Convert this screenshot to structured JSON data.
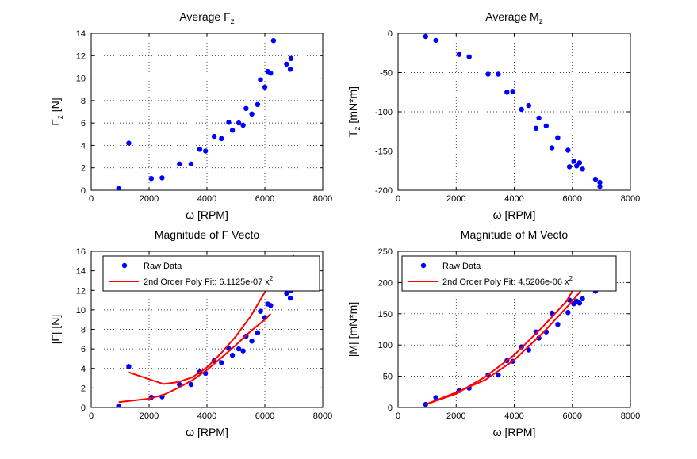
{
  "figure": {
    "background": "#ffffff"
  },
  "chart_data": [
    {
      "id": "fz",
      "type": "scatter",
      "title": {
        "main": "Average F",
        "sub": "z"
      },
      "xlabel": {
        "main": "ω [RPM]"
      },
      "ylabel": {
        "main": "F",
        "sub": "z",
        "tail": " [N]"
      },
      "xlim": [
        0,
        8000
      ],
      "ylim": [
        0,
        14
      ],
      "xticks": [
        0,
        2000,
        4000,
        6000,
        8000
      ],
      "yticks": [
        0,
        2,
        4,
        6,
        8,
        10,
        12,
        14
      ],
      "grid": true,
      "series": [
        {
          "color": "#0000ff",
          "marker": "dot",
          "points": [
            [
              950,
              0.15
            ],
            [
              1300,
              4.2
            ],
            [
              2080,
              1.05
            ],
            [
              2450,
              1.1
            ],
            [
              3050,
              2.35
            ],
            [
              3450,
              2.35
            ],
            [
              3750,
              3.65
            ],
            [
              3950,
              3.5
            ],
            [
              4250,
              4.8
            ],
            [
              4500,
              4.6
            ],
            [
              4750,
              6.05
            ],
            [
              4880,
              5.35
            ],
            [
              5100,
              6.0
            ],
            [
              5250,
              5.8
            ],
            [
              5350,
              7.3
            ],
            [
              5550,
              6.8
            ],
            [
              5750,
              7.65
            ],
            [
              5850,
              9.85
            ],
            [
              6000,
              9.2
            ],
            [
              6100,
              10.6
            ],
            [
              6200,
              10.45
            ],
            [
              6300,
              13.35
            ],
            [
              6750,
              11.25
            ],
            [
              6900,
              11.75
            ],
            [
              6880,
              10.8
            ]
          ]
        }
      ]
    },
    {
      "id": "mz",
      "type": "scatter",
      "title": {
        "main": "Average M",
        "sub": "z"
      },
      "xlabel": {
        "main": "ω [RPM]"
      },
      "ylabel": {
        "main": "T",
        "sub": "z",
        "tail": " [mN*m]"
      },
      "xlim": [
        0,
        8000
      ],
      "ylim": [
        -200,
        0
      ],
      "xticks": [
        0,
        2000,
        4000,
        6000,
        8000
      ],
      "yticks": [
        -200,
        -150,
        -100,
        -50,
        0
      ],
      "grid": true,
      "series": [
        {
          "color": "#0000ff",
          "marker": "dot",
          "points": [
            [
              950,
              -4
            ],
            [
              1300,
              -9
            ],
            [
              2100,
              -27
            ],
            [
              2450,
              -30
            ],
            [
              3100,
              -52
            ],
            [
              3450,
              -52
            ],
            [
              3750,
              -75
            ],
            [
              3950,
              -74
            ],
            [
              4250,
              -97
            ],
            [
              4500,
              -92
            ],
            [
              4750,
              -121
            ],
            [
              4850,
              -108
            ],
            [
              5100,
              -118
            ],
            [
              5300,
              -146
            ],
            [
              5500,
              -133
            ],
            [
              5850,
              -149
            ],
            [
              5900,
              -170
            ],
            [
              6050,
              -163
            ],
            [
              6150,
              -169
            ],
            [
              6250,
              -165
            ],
            [
              6350,
              -173
            ],
            [
              6800,
              -186
            ],
            [
              6950,
              -190
            ],
            [
              6950,
              -195
            ]
          ]
        }
      ]
    },
    {
      "id": "fmag",
      "type": "scatter",
      "title": {
        "main": "Magnitude of F Vecto"
      },
      "xlabel": {
        "main": "ω [RPM]"
      },
      "ylabel": {
        "main": "|F| [N]"
      },
      "xlim": [
        0,
        8000
      ],
      "ylim": [
        0,
        16
      ],
      "xticks": [
        0,
        2000,
        4000,
        6000,
        8000
      ],
      "yticks": [
        0,
        2,
        4,
        6,
        8,
        10,
        12,
        14,
        16
      ],
      "grid": true,
      "legend": {
        "position": "top",
        "entries": [
          {
            "label": "Raw Data",
            "kind": "dot",
            "color": "#0000ff"
          },
          {
            "label": "2nd Order Poly Fit: 6.1125e-07 x",
            "sup": "2",
            "kind": "line",
            "color": "#ff0000"
          }
        ]
      },
      "series": [
        {
          "color": "#0000ff",
          "marker": "dot",
          "points": [
            [
              950,
              0.15
            ],
            [
              1300,
              4.2
            ],
            [
              2080,
              1.05
            ],
            [
              2450,
              1.1
            ],
            [
              3050,
              2.35
            ],
            [
              3450,
              2.35
            ],
            [
              3750,
              3.65
            ],
            [
              3950,
              3.5
            ],
            [
              4250,
              4.8
            ],
            [
              4500,
              4.6
            ],
            [
              4750,
              6.05
            ],
            [
              4880,
              5.35
            ],
            [
              5100,
              6.0
            ],
            [
              5250,
              5.8
            ],
            [
              5350,
              7.3
            ],
            [
              5550,
              6.8
            ],
            [
              5750,
              7.65
            ],
            [
              5850,
              9.85
            ],
            [
              6000,
              9.2
            ],
            [
              6100,
              10.6
            ],
            [
              6200,
              10.45
            ],
            [
              6750,
              11.7
            ],
            [
              6900,
              12.0
            ],
            [
              6880,
              11.2
            ]
          ]
        },
        {
          "color": "#ff0000",
          "marker": "line",
          "points": [
            [
              950,
              0.55
            ],
            [
              2000,
              0.9
            ],
            [
              2500,
              1.3
            ],
            [
              3000,
              2.0
            ],
            [
              3500,
              2.8
            ],
            [
              4000,
              3.85
            ],
            [
              4500,
              5.1
            ],
            [
              5000,
              6.4
            ],
            [
              5500,
              7.8
            ],
            [
              6000,
              9.0
            ],
            [
              6200,
              9.6
            ]
          ]
        },
        {
          "color": "#ff0000",
          "marker": "line",
          "points": [
            [
              1300,
              3.6
            ],
            [
              2500,
              2.4
            ],
            [
              3000,
              2.6
            ],
            [
              3500,
              3.1
            ],
            [
              4000,
              4.1
            ],
            [
              4500,
              5.6
            ],
            [
              5000,
              7.3
            ],
            [
              5500,
              9.3
            ],
            [
              6000,
              11.8
            ],
            [
              6500,
              13.6
            ],
            [
              7000,
              15.6
            ]
          ]
        }
      ]
    },
    {
      "id": "mmag",
      "type": "scatter",
      "title": {
        "main": "Magnitude of M Vecto"
      },
      "xlabel": {
        "main": "ω [RPM]"
      },
      "ylabel": {
        "main": "|M| [mN*m]"
      },
      "xlim": [
        0,
        8000
      ],
      "ylim": [
        0,
        250
      ],
      "xticks": [
        0,
        2000,
        4000,
        6000,
        8000
      ],
      "yticks": [
        0,
        50,
        100,
        150,
        200,
        250
      ],
      "grid": true,
      "legend": {
        "position": "top",
        "entries": [
          {
            "label": "Raw Data",
            "kind": "dot",
            "color": "#0000ff"
          },
          {
            "label": "2nd Order Poly Fit: 4.5206e-06 x",
            "sup": "2",
            "kind": "line",
            "color": "#ff0000"
          }
        ]
      },
      "series": [
        {
          "color": "#0000ff",
          "marker": "dot",
          "points": [
            [
              950,
              5
            ],
            [
              1300,
              16
            ],
            [
              2100,
              27
            ],
            [
              2450,
              31
            ],
            [
              3100,
              52
            ],
            [
              3450,
              52
            ],
            [
              3750,
              75
            ],
            [
              3950,
              74
            ],
            [
              4250,
              97
            ],
            [
              4500,
              92
            ],
            [
              4750,
              121
            ],
            [
              4850,
              111
            ],
            [
              5100,
              121
            ],
            [
              5300,
              151
            ],
            [
              5500,
              133
            ],
            [
              5850,
              152
            ],
            [
              5900,
              172
            ],
            [
              6050,
              166
            ],
            [
              6150,
              170
            ],
            [
              6250,
              167
            ],
            [
              6350,
              174
            ],
            [
              6800,
              186
            ]
          ]
        },
        {
          "color": "#ff0000",
          "marker": "line",
          "points": [
            [
              950,
              5
            ],
            [
              2000,
              24
            ],
            [
              3000,
              44
            ],
            [
              4000,
              76
            ],
            [
              5000,
              120
            ],
            [
              6000,
              170
            ],
            [
              6400,
              193
            ]
          ]
        },
        {
          "color": "#ff0000",
          "marker": "line",
          "points": [
            [
              950,
              5
            ],
            [
              2000,
              22
            ],
            [
              3000,
              49
            ],
            [
              4000,
              84
            ],
            [
              5000,
              130
            ],
            [
              5800,
              170
            ],
            [
              6000,
              186
            ]
          ]
        }
      ]
    }
  ]
}
